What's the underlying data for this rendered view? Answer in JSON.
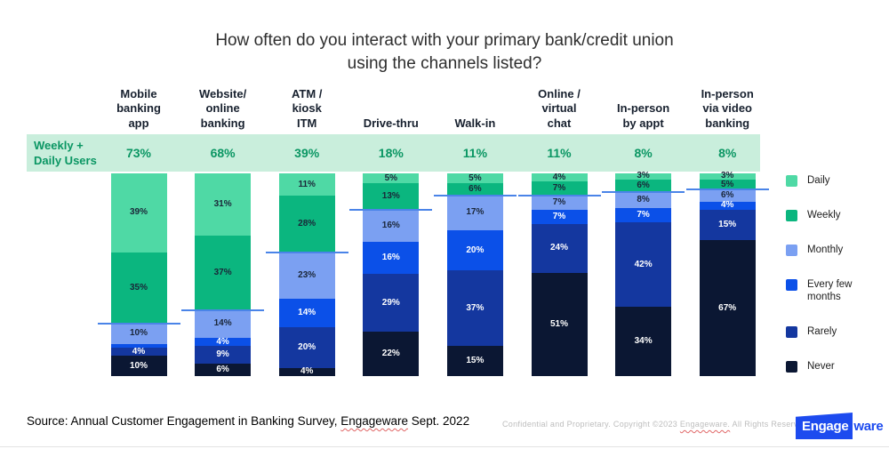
{
  "title": "How often do you interact with your primary bank/credit union\nusing the channels listed?",
  "band": {
    "label": "Weekly +\nDaily Users",
    "bg_color": "#c9eedc",
    "text_color": "#0a9663"
  },
  "chart_data": {
    "type": "bar",
    "stacked": true,
    "title": "How often do you interact with your primary bank/credit union using the channels listed?",
    "categories": [
      "Mobile\nbanking\napp",
      "Website/\nonline\nbanking",
      "ATM /\nkiosk\nITM",
      "Drive-thru",
      "Walk-in",
      "Online /\nvirtual\nchat",
      "In-person\nby appt",
      "In-person\nvia video\nbanking"
    ],
    "weekly_daily_totals": [
      "73%",
      "68%",
      "39%",
      "18%",
      "11%",
      "11%",
      "8%",
      "8%"
    ],
    "series": [
      {
        "name": "Daily",
        "color": "#4fd9a5",
        "label_color": "#1a2638",
        "values": [
          39,
          31,
          11,
          5,
          5,
          4,
          3,
          3
        ]
      },
      {
        "name": "Weekly",
        "color": "#0bb67f",
        "label_color": "#1a2638",
        "values": [
          35,
          37,
          28,
          13,
          6,
          7,
          6,
          5
        ]
      },
      {
        "name": "Monthly",
        "color": "#7ba0f2",
        "label_color": "#1a2638",
        "values": [
          10,
          14,
          23,
          16,
          17,
          7,
          8,
          6
        ]
      },
      {
        "name": "Every few months",
        "color": "#0b50e8",
        "label_color": "#ffffff",
        "values": [
          2,
          4,
          14,
          16,
          20,
          7,
          7,
          4
        ]
      },
      {
        "name": "Rarely",
        "color": "#14379f",
        "label_color": "#ffffff",
        "values": [
          4,
          9,
          20,
          29,
          37,
          24,
          42,
          15
        ]
      },
      {
        "name": "Never",
        "color": "#0b1733",
        "label_color": "#ffffff",
        "values": [
          10,
          6,
          4,
          22,
          15,
          51,
          34,
          67
        ]
      }
    ],
    "marker_line_color": "#4a84e8",
    "min_label_value": 3,
    "ylim": [
      0,
      100
    ],
    "grid": false,
    "legend_position": "right"
  },
  "legend": {
    "items": [
      {
        "label": "Daily",
        "color": "#4fd9a5"
      },
      {
        "label": "Weekly",
        "color": "#0bb67f"
      },
      {
        "label": "Monthly",
        "color": "#7ba0f2"
      },
      {
        "label": "Every few\nmonths",
        "color": "#0b50e8"
      },
      {
        "label": "Rarely",
        "color": "#14379f"
      },
      {
        "label": "Never",
        "color": "#0b1733"
      }
    ]
  },
  "footer": {
    "source_prefix": "Source: Annual Customer Engagement in Banking Survey, ",
    "source_brand": "Engageware",
    "source_suffix": " Sept. 2022",
    "confidential_prefix": "Confidential and Proprietary. Copyright ©2023 ",
    "confidential_brand": "Engageware.",
    "confidential_suffix": " All Rights Reserved.",
    "logo_primary": "Engage",
    "logo_secondary": "ware",
    "logo_color": "#1d4bef"
  }
}
